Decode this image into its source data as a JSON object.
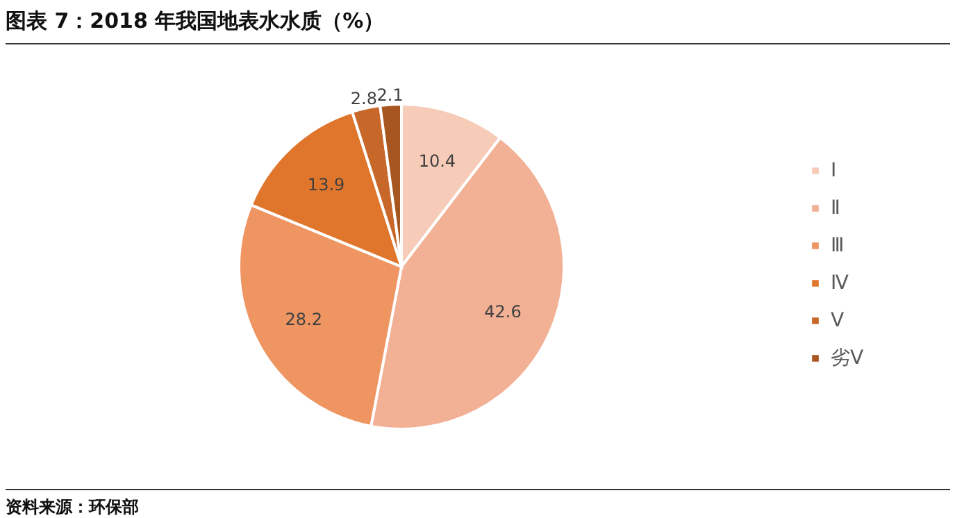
{
  "chart_data": {
    "type": "pie",
    "title": "图表 7：2018 年我国地表水水质（%）",
    "categories": [
      "Ⅰ",
      "Ⅱ",
      "Ⅲ",
      "Ⅳ",
      "Ⅴ",
      "劣Ⅴ"
    ],
    "values": [
      10.4,
      42.6,
      28.2,
      13.9,
      2.8,
      2.1
    ],
    "colors": [
      "#f6cbb8",
      "#f2b095",
      "#ee9562",
      "#e0762c",
      "#c8672a",
      "#a8561f"
    ],
    "data_labels": true,
    "legend": "right",
    "annotations": [
      "资料来源：环保部"
    ]
  }
}
